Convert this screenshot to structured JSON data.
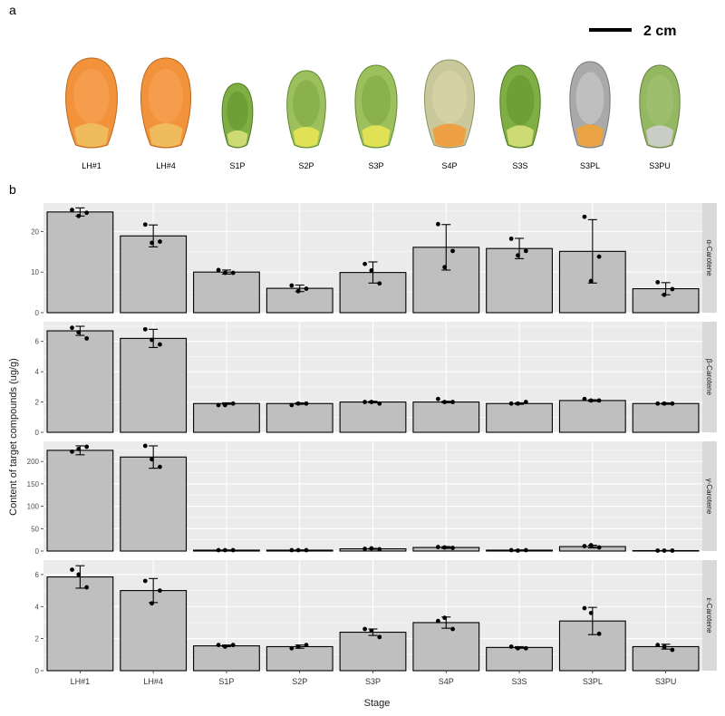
{
  "figure": {
    "panel_a_label": "a",
    "panel_b_label": "b",
    "scale_bar_label": "2 cm",
    "photos": [
      {
        "label": "LH#1",
        "icon": "orange-kernel-icon"
      },
      {
        "label": "LH#4",
        "icon": "orange-kernel-icon"
      },
      {
        "label": "S1P",
        "icon": "green-kernel-icon"
      },
      {
        "label": "S2P",
        "icon": "green-yellow-kernel-icon"
      },
      {
        "label": "S3P",
        "icon": "green-yellow-kernel-icon"
      },
      {
        "label": "S4P",
        "icon": "pale-orange-kernel-icon"
      },
      {
        "label": "S3S",
        "icon": "green-kernel-icon"
      },
      {
        "label": "S3PL",
        "icon": "grey-orange-kernel-icon"
      },
      {
        "label": "S3PU",
        "icon": "green-grey-kernel-icon"
      }
    ],
    "colors": {
      "panel_bg": "#ebebeb",
      "strip_bg": "#d9d9d9",
      "bar_fill": "#bfbfbf",
      "bar_stroke": "#000000",
      "grid": "#ffffff",
      "point": "#000000"
    }
  },
  "chart_data": {
    "type": "bar",
    "xlabel": "Stage",
    "ylabel": "Content of target compounds (ug/g)",
    "categories": [
      "LH#1",
      "LH#4",
      "S1P",
      "S2P",
      "S3P",
      "S4P",
      "S3S",
      "S3PL",
      "S3PU"
    ],
    "grid": true,
    "error_bars": "sd",
    "facets": [
      {
        "name": "α-Carotene",
        "ylim": [
          0,
          27
        ],
        "yticks": [
          0,
          10,
          20
        ],
        "values": [
          24.8,
          18.9,
          10.0,
          6.0,
          9.9,
          16.1,
          15.8,
          15.1,
          5.9
        ],
        "err": [
          1.0,
          2.7,
          0.5,
          0.8,
          2.6,
          5.6,
          2.5,
          7.8,
          1.5
        ],
        "points": [
          [
            25.3,
            24.6,
            23.8
          ],
          [
            21.7,
            17.5,
            17.2
          ],
          [
            10.5,
            9.8,
            9.8
          ],
          [
            6.7,
            5.9,
            5.3
          ],
          [
            12.0,
            7.2,
            10.4
          ],
          [
            21.8,
            15.2,
            11.2
          ],
          [
            18.2,
            15.2,
            14.1
          ],
          [
            23.6,
            13.8,
            7.8
          ],
          [
            7.5,
            5.8,
            4.4
          ]
        ]
      },
      {
        "name": "β-Carotene",
        "ylim": [
          0,
          7.3
        ],
        "yticks": [
          0,
          2,
          4,
          6
        ],
        "values": [
          6.7,
          6.2,
          1.9,
          1.9,
          2.0,
          2.0,
          1.9,
          2.1,
          1.9
        ],
        "err": [
          0.3,
          0.6,
          0.05,
          0.05,
          0.05,
          0.05,
          0.05,
          0.05,
          0.05
        ],
        "points": [
          [
            6.9,
            6.2,
            6.6
          ],
          [
            6.8,
            5.8,
            6.1
          ],
          [
            1.8,
            1.9,
            1.8
          ],
          [
            1.8,
            1.9,
            1.9
          ],
          [
            2.0,
            1.9,
            2.0
          ],
          [
            2.2,
            2.0,
            2.0
          ],
          [
            1.9,
            2.0,
            1.9
          ],
          [
            2.2,
            2.1,
            2.1
          ],
          [
            1.9,
            1.9,
            1.9
          ]
        ]
      },
      {
        "name": "γ-Carotene",
        "ylim": [
          0,
          245
        ],
        "yticks": [
          0,
          50,
          100,
          150,
          200
        ],
        "values": [
          225,
          210,
          2,
          2,
          5,
          8,
          2,
          10,
          1
        ],
        "err": [
          10,
          25,
          0.5,
          0.5,
          1,
          2,
          0.5,
          3,
          0.3
        ],
        "points": [
          [
            222,
            233,
            228
          ],
          [
            235,
            188,
            205
          ],
          [
            2,
            2,
            2
          ],
          [
            2,
            2,
            2
          ],
          [
            5,
            4,
            6
          ],
          [
            9,
            7,
            8
          ],
          [
            2,
            2,
            1
          ],
          [
            11,
            8,
            13
          ],
          [
            1,
            1,
            1
          ]
        ]
      },
      {
        "name": "ε-Carotene",
        "ylim": [
          0,
          6.9
        ],
        "yticks": [
          0,
          2,
          4,
          6
        ],
        "values": [
          5.85,
          5.0,
          1.55,
          1.5,
          2.4,
          3.0,
          1.45,
          3.1,
          1.5
        ],
        "err": [
          0.7,
          0.75,
          0.05,
          0.1,
          0.2,
          0.35,
          0.05,
          0.85,
          0.15
        ],
        "points": [
          [
            6.3,
            5.2,
            6.0
          ],
          [
            5.6,
            5.0,
            4.2
          ],
          [
            1.6,
            1.6,
            1.5
          ],
          [
            1.4,
            1.6,
            1.5
          ],
          [
            2.6,
            2.1,
            2.5
          ],
          [
            3.1,
            2.6,
            3.3
          ],
          [
            1.5,
            1.4,
            1.4
          ],
          [
            3.9,
            2.3,
            3.6
          ],
          [
            1.6,
            1.3,
            1.5
          ]
        ]
      }
    ]
  }
}
